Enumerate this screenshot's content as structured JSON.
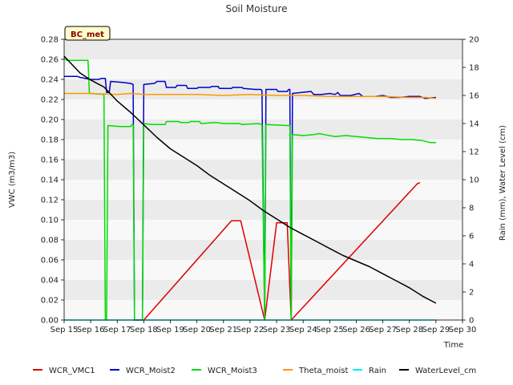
{
  "chart_data": {
    "type": "line",
    "title": "Soil Moisture",
    "badge": "BC_met",
    "xlabel": "Time",
    "ylabel": "VWC (m3/m3)",
    "y2label": "Rain (mm), Water Level (cm)",
    "x_unit": "day_of_september",
    "xlim": [
      15,
      30
    ],
    "ylim": [
      0,
      0.28
    ],
    "y2lim": [
      0,
      20
    ],
    "xticks": [
      15,
      16,
      17,
      18,
      19,
      20,
      21,
      22,
      23,
      24,
      25,
      26,
      27,
      28,
      29,
      30
    ],
    "xtick_labels": [
      "Sep 15",
      "Sep 16",
      "Sep 17",
      "Sep 18",
      "Sep 19",
      "Sep 20",
      "Sep 21",
      "Sep 22",
      "Sep 23",
      "Sep 24",
      "Sep 25",
      "Sep 26",
      "Sep 27",
      "Sep 28",
      "Sep 29",
      "Sep 30"
    ],
    "yticks": [
      0,
      0.02,
      0.04,
      0.06,
      0.08,
      0.1,
      0.12,
      0.14,
      0.16,
      0.18,
      0.2,
      0.22,
      0.24,
      0.26,
      0.28
    ],
    "ytick_labels": [
      "0.00",
      "0.02",
      "0.04",
      "0.06",
      "0.08",
      "0.10",
      "0.12",
      "0.14",
      "0.16",
      "0.18",
      "0.20",
      "0.22",
      "0.24",
      "0.26",
      "0.28"
    ],
    "y2ticks": [
      0,
      2,
      4,
      6,
      8,
      10,
      12,
      14,
      16,
      18,
      20
    ],
    "y2tick_labels": [
      "0",
      "2",
      "4",
      "6",
      "8",
      "10",
      "12",
      "14",
      "16",
      "18",
      "20"
    ],
    "grid": "horizontal bands",
    "legend_position": "bottom",
    "series": [
      {
        "name": "WCR_VMC1",
        "color": "#dd0000",
        "axis": "left",
        "points": [
          [
            17.6,
            0.0
          ],
          [
            18.0,
            0.0
          ],
          [
            21.3,
            0.099
          ],
          [
            21.65,
            0.099
          ],
          [
            22.55,
            0.0
          ],
          [
            23.0,
            0.097
          ],
          [
            23.4,
            0.097
          ],
          [
            23.55,
            0.0
          ],
          [
            28.3,
            0.136
          ],
          [
            28.4,
            0.137
          ]
        ]
      },
      {
        "name": "WCR_Moist2",
        "color": "#0000cc",
        "axis": "left",
        "points": [
          [
            15.0,
            0.243
          ],
          [
            15.5,
            0.243
          ],
          [
            15.6,
            0.242
          ],
          [
            16.0,
            0.24
          ],
          [
            16.3,
            0.24
          ],
          [
            16.4,
            0.241
          ],
          [
            16.55,
            0.241
          ],
          [
            16.6,
            0.227
          ],
          [
            16.7,
            0.227
          ],
          [
            16.75,
            0.238
          ],
          [
            17.2,
            0.237
          ],
          [
            17.5,
            0.236
          ],
          [
            17.6,
            0.235
          ],
          [
            17.65,
            0.0
          ],
          [
            17.95,
            0.0
          ],
          [
            18.0,
            0.235
          ],
          [
            18.4,
            0.236
          ],
          [
            18.5,
            0.238
          ],
          [
            18.8,
            0.238
          ],
          [
            18.85,
            0.232
          ],
          [
            19.2,
            0.232
          ],
          [
            19.25,
            0.234
          ],
          [
            19.6,
            0.234
          ],
          [
            19.65,
            0.231
          ],
          [
            20.0,
            0.231
          ],
          [
            20.05,
            0.232
          ],
          [
            20.5,
            0.232
          ],
          [
            20.55,
            0.233
          ],
          [
            20.8,
            0.233
          ],
          [
            20.85,
            0.231
          ],
          [
            21.3,
            0.231
          ],
          [
            21.35,
            0.232
          ],
          [
            21.7,
            0.232
          ],
          [
            21.75,
            0.231
          ],
          [
            22.2,
            0.23
          ],
          [
            22.4,
            0.23
          ],
          [
            22.45,
            0.229
          ],
          [
            22.55,
            0.0
          ],
          [
            22.6,
            0.23
          ],
          [
            23.0,
            0.23
          ],
          [
            23.05,
            0.228
          ],
          [
            23.4,
            0.228
          ],
          [
            23.45,
            0.23
          ],
          [
            23.5,
            0.23
          ],
          [
            23.55,
            0.0
          ],
          [
            23.6,
            0.226
          ],
          [
            24.3,
            0.228
          ],
          [
            24.4,
            0.225
          ],
          [
            24.7,
            0.225
          ],
          [
            25.0,
            0.226
          ],
          [
            25.2,
            0.225
          ],
          [
            25.3,
            0.227
          ],
          [
            25.4,
            0.224
          ],
          [
            25.8,
            0.224
          ],
          [
            26.1,
            0.226
          ],
          [
            26.25,
            0.223
          ],
          [
            26.7,
            0.223
          ],
          [
            27.0,
            0.224
          ],
          [
            27.3,
            0.222
          ],
          [
            27.6,
            0.222
          ],
          [
            28.0,
            0.223
          ],
          [
            28.4,
            0.223
          ],
          [
            28.6,
            0.221
          ],
          [
            29.0,
            0.222
          ]
        ]
      },
      {
        "name": "WCR_Moist3",
        "color": "#00dd00",
        "axis": "left",
        "points": [
          [
            15.0,
            0.261
          ],
          [
            15.1,
            0.259
          ],
          [
            15.9,
            0.259
          ],
          [
            15.95,
            0.226
          ],
          [
            16.5,
            0.225
          ],
          [
            16.55,
            0.0
          ],
          [
            16.6,
            0.0
          ],
          [
            16.65,
            0.194
          ],
          [
            17.1,
            0.193
          ],
          [
            17.5,
            0.193
          ],
          [
            17.55,
            0.195
          ],
          [
            17.6,
            0.195
          ],
          [
            17.65,
            0.0
          ],
          [
            17.95,
            0.0
          ],
          [
            18.0,
            0.196
          ],
          [
            18.3,
            0.195
          ],
          [
            18.8,
            0.195
          ],
          [
            18.85,
            0.198
          ],
          [
            19.3,
            0.198
          ],
          [
            19.4,
            0.197
          ],
          [
            19.7,
            0.197
          ],
          [
            19.75,
            0.198
          ],
          [
            20.1,
            0.198
          ],
          [
            20.15,
            0.196
          ],
          [
            20.7,
            0.197
          ],
          [
            21.0,
            0.196
          ],
          [
            21.6,
            0.196
          ],
          [
            21.7,
            0.195
          ],
          [
            22.3,
            0.196
          ],
          [
            22.45,
            0.195
          ],
          [
            22.55,
            0.0
          ],
          [
            22.6,
            0.195
          ],
          [
            23.4,
            0.194
          ],
          [
            23.5,
            0.194
          ],
          [
            23.55,
            0.0
          ],
          [
            23.6,
            0.185
          ],
          [
            24.0,
            0.184
          ],
          [
            24.4,
            0.185
          ],
          [
            24.6,
            0.186
          ],
          [
            24.8,
            0.185
          ],
          [
            25.2,
            0.183
          ],
          [
            25.6,
            0.184
          ],
          [
            26.0,
            0.183
          ],
          [
            26.4,
            0.182
          ],
          [
            26.8,
            0.181
          ],
          [
            27.3,
            0.181
          ],
          [
            27.7,
            0.18
          ],
          [
            28.1,
            0.18
          ],
          [
            28.5,
            0.179
          ],
          [
            28.8,
            0.177
          ],
          [
            29.0,
            0.177
          ]
        ]
      },
      {
        "name": "Theta_moist",
        "color": "#ff9900",
        "axis": "left",
        "points": [
          [
            15.0,
            0.226
          ],
          [
            16.0,
            0.226
          ],
          [
            17.0,
            0.225
          ],
          [
            17.5,
            0.226
          ],
          [
            18.0,
            0.225
          ],
          [
            19.0,
            0.225
          ],
          [
            20.0,
            0.225
          ],
          [
            21.0,
            0.224
          ],
          [
            22.0,
            0.225
          ],
          [
            23.0,
            0.224
          ],
          [
            24.0,
            0.224
          ],
          [
            25.0,
            0.223
          ],
          [
            26.0,
            0.223
          ],
          [
            27.0,
            0.223
          ],
          [
            28.0,
            0.222
          ],
          [
            28.6,
            0.222
          ],
          [
            29.0,
            0.221
          ]
        ]
      },
      {
        "name": "Rain",
        "color": "#00eeee",
        "axis": "right",
        "points": [
          [
            15.0,
            0.0
          ],
          [
            29.0,
            0.0
          ]
        ]
      },
      {
        "name": "WaterLevel_cm",
        "color": "#000000",
        "axis": "right",
        "points": [
          [
            15.0,
            18.8
          ],
          [
            15.3,
            18.2
          ],
          [
            15.6,
            17.6
          ],
          [
            16.0,
            17.1
          ],
          [
            16.5,
            16.6
          ],
          [
            17.0,
            15.6
          ],
          [
            17.5,
            14.8
          ],
          [
            18.0,
            13.9
          ],
          [
            18.5,
            13.0
          ],
          [
            19.0,
            12.2
          ],
          [
            19.5,
            11.6
          ],
          [
            20.0,
            11.0
          ],
          [
            20.5,
            10.3
          ],
          [
            21.0,
            9.7
          ],
          [
            21.5,
            9.1
          ],
          [
            22.0,
            8.5
          ],
          [
            22.5,
            7.8
          ],
          [
            23.0,
            7.2
          ],
          [
            23.5,
            6.6
          ],
          [
            24.0,
            6.1
          ],
          [
            24.5,
            5.6
          ],
          [
            25.0,
            5.1
          ],
          [
            25.5,
            4.6
          ],
          [
            26.0,
            4.2
          ],
          [
            26.5,
            3.8
          ],
          [
            27.0,
            3.3
          ],
          [
            27.5,
            2.8
          ],
          [
            28.0,
            2.3
          ],
          [
            28.5,
            1.7
          ],
          [
            29.0,
            1.2
          ]
        ]
      }
    ]
  }
}
